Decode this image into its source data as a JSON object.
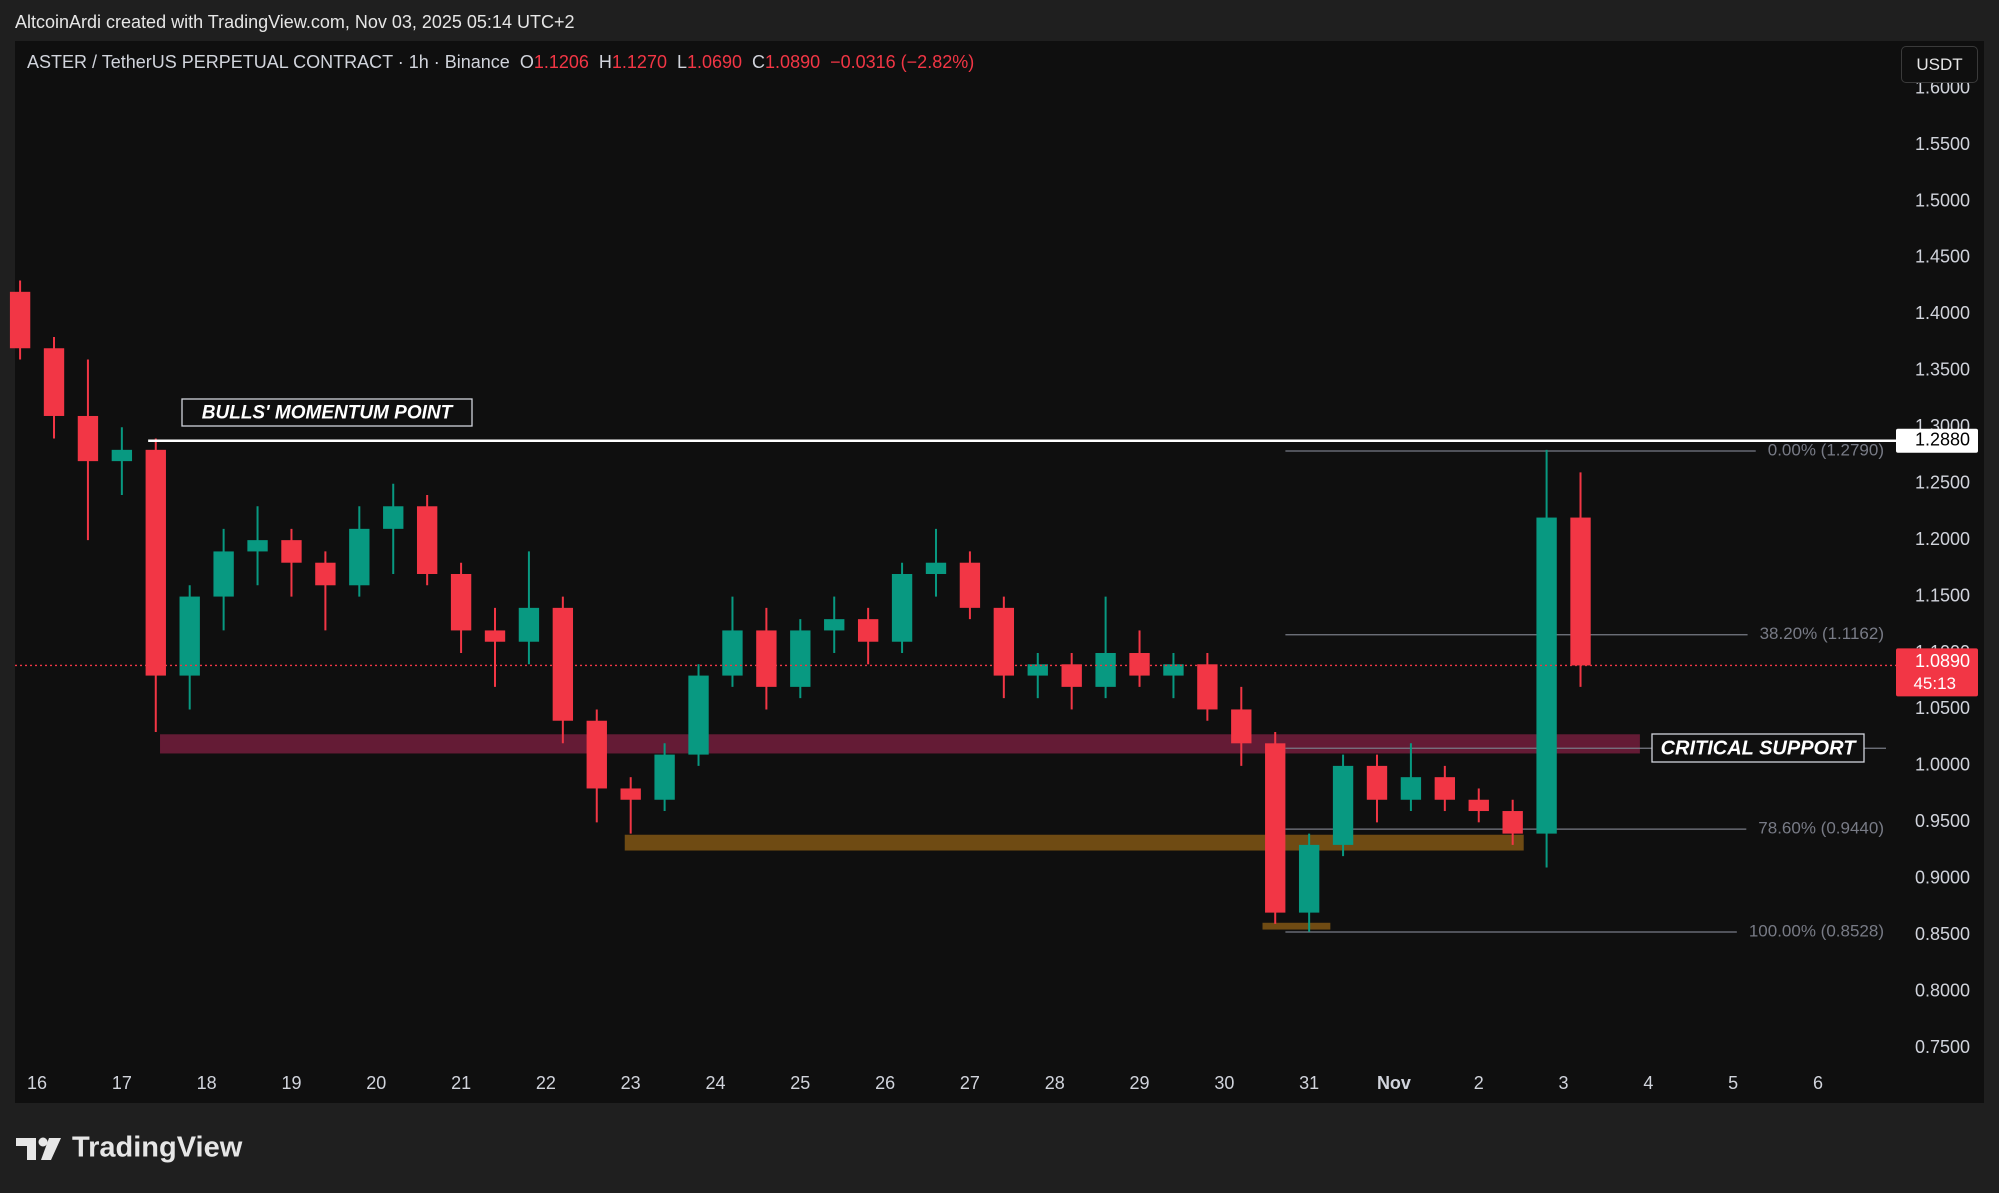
{
  "header": {
    "credit": "AltcoinArdi created with TradingView.com, Nov 03, 2025 05:14 UTC+2",
    "symbol": "ASTER / TetherUS PERPETUAL CONTRACT · 1h · Binance",
    "ohlc": [
      {
        "label": "O",
        "value": "1.1206"
      },
      {
        "label": "H",
        "value": "1.1270"
      },
      {
        "label": "L",
        "value": "1.0690"
      },
      {
        "label": "C",
        "value": "1.0890"
      }
    ],
    "change": "−0.0316 (−2.82%)",
    "currency": "USDT"
  },
  "footer": {
    "brand": "TradingView"
  },
  "chart_data": {
    "type": "candlestick",
    "up_color": "#089981",
    "down_color": "#f23645",
    "xlim": [
      -0.26,
      21.92
    ],
    "xticks": [
      {
        "value": 0,
        "label": "16"
      },
      {
        "value": 1,
        "label": "17"
      },
      {
        "value": 2,
        "label": "18"
      },
      {
        "value": 3,
        "label": "19"
      },
      {
        "value": 4,
        "label": "20"
      },
      {
        "value": 5,
        "label": "21"
      },
      {
        "value": 6,
        "label": "22"
      },
      {
        "value": 7,
        "label": "23"
      },
      {
        "value": 8,
        "label": "24"
      },
      {
        "value": 9,
        "label": "25"
      },
      {
        "value": 10,
        "label": "26"
      },
      {
        "value": 11,
        "label": "27"
      },
      {
        "value": 12,
        "label": "28"
      },
      {
        "value": 13,
        "label": "29"
      },
      {
        "value": 14,
        "label": "30"
      },
      {
        "value": 15,
        "label": "31"
      },
      {
        "value": 16,
        "label": "Nov"
      },
      {
        "value": 17,
        "label": "2"
      },
      {
        "value": 18,
        "label": "3"
      },
      {
        "value": 19,
        "label": "4"
      },
      {
        "value": 20,
        "label": "5"
      },
      {
        "value": 21,
        "label": "6"
      }
    ],
    "ylim": [
      0.735,
      1.605
    ],
    "yticks": [
      {
        "value": 0.75,
        "label": "0.7500"
      },
      {
        "value": 0.8,
        "label": "0.8000"
      },
      {
        "value": 0.85,
        "label": "0.8500"
      },
      {
        "value": 0.9,
        "label": "0.9000"
      },
      {
        "value": 0.95,
        "label": "0.9500"
      },
      {
        "value": 1.0,
        "label": "1.0000"
      },
      {
        "value": 1.05,
        "label": "1.0500"
      },
      {
        "value": 1.1,
        "label": "1.1000"
      },
      {
        "value": 1.15,
        "label": "1.1500"
      },
      {
        "value": 1.2,
        "label": "1.2000"
      },
      {
        "value": 1.25,
        "label": "1.2500"
      },
      {
        "value": 1.3,
        "label": "1.3000"
      },
      {
        "value": 1.35,
        "label": "1.3500"
      },
      {
        "value": 1.4,
        "label": "1.4000"
      },
      {
        "value": 1.45,
        "label": "1.4500"
      },
      {
        "value": 1.5,
        "label": "1.5000"
      },
      {
        "value": 1.55,
        "label": "1.5500"
      },
      {
        "value": 1.6,
        "label": "1.6000"
      }
    ],
    "grid": false,
    "x": [
      -0.2,
      0.2,
      0.6,
      1.0,
      1.4,
      1.8,
      2.2,
      2.6,
      3.0,
      3.4,
      3.8,
      4.2,
      4.6,
      5.0,
      5.4,
      5.8,
      6.2,
      6.6,
      7.0,
      7.4,
      7.8,
      8.2,
      8.6,
      9.0,
      9.4,
      9.8,
      10.2,
      10.6,
      11.0,
      11.4,
      11.8,
      12.2,
      12.6,
      13.0,
      13.4,
      13.8,
      14.2,
      14.6,
      15.0,
      15.4,
      15.8,
      16.2,
      16.6,
      17.0,
      17.4,
      17.8,
      18.2
    ],
    "open": [
      1.42,
      1.37,
      1.31,
      1.27,
      1.28,
      1.08,
      1.15,
      1.19,
      1.2,
      1.18,
      1.16,
      1.21,
      1.23,
      1.17,
      1.12,
      1.11,
      1.14,
      1.04,
      0.98,
      0.97,
      1.01,
      1.08,
      1.12,
      1.07,
      1.12,
      1.13,
      1.11,
      1.17,
      1.18,
      1.14,
      1.08,
      1.09,
      1.07,
      1.1,
      1.08,
      1.09,
      1.05,
      1.02,
      0.87,
      0.93,
      1.0,
      0.97,
      0.99,
      0.97,
      0.96,
      0.94,
      1.22
    ],
    "high": [
      1.43,
      1.38,
      1.36,
      1.3,
      1.29,
      1.16,
      1.21,
      1.23,
      1.21,
      1.19,
      1.23,
      1.25,
      1.24,
      1.18,
      1.14,
      1.19,
      1.15,
      1.05,
      0.99,
      1.02,
      1.09,
      1.15,
      1.14,
      1.13,
      1.15,
      1.14,
      1.18,
      1.21,
      1.19,
      1.15,
      1.1,
      1.1,
      1.15,
      1.12,
      1.1,
      1.1,
      1.07,
      1.03,
      0.94,
      1.01,
      1.01,
      1.02,
      1.0,
      0.98,
      0.97,
      1.28,
      1.26
    ],
    "low": [
      1.36,
      1.29,
      1.2,
      1.24,
      1.03,
      1.05,
      1.12,
      1.16,
      1.15,
      1.12,
      1.15,
      1.17,
      1.16,
      1.1,
      1.07,
      1.09,
      1.02,
      0.95,
      0.94,
      0.96,
      1.0,
      1.07,
      1.05,
      1.06,
      1.1,
      1.09,
      1.1,
      1.15,
      1.13,
      1.06,
      1.06,
      1.05,
      1.06,
      1.07,
      1.06,
      1.04,
      1.0,
      0.86,
      0.853,
      0.92,
      0.95,
      0.96,
      0.96,
      0.95,
      0.93,
      0.91,
      1.07
    ],
    "close": [
      1.37,
      1.31,
      1.27,
      1.28,
      1.08,
      1.15,
      1.19,
      1.2,
      1.18,
      1.16,
      1.21,
      1.23,
      1.17,
      1.12,
      1.11,
      1.14,
      1.04,
      0.98,
      0.97,
      1.01,
      1.08,
      1.12,
      1.07,
      1.12,
      1.13,
      1.11,
      1.17,
      1.18,
      1.14,
      1.08,
      1.09,
      1.07,
      1.1,
      1.08,
      1.09,
      1.05,
      1.02,
      0.87,
      0.93,
      1.0,
      0.97,
      0.99,
      0.97,
      0.96,
      0.94,
      1.22,
      1.089
    ],
    "hline": {
      "value": 1.288,
      "label": "1.2880",
      "x_start": 1.31,
      "color": "#ffffff"
    },
    "last_price": {
      "value": 1.089,
      "label": "1.0890",
      "countdown": "45:13",
      "color": "#f23645"
    },
    "zones": [
      {
        "y": [
          1.011,
          1.028
        ],
        "x": [
          1.45,
          18.9
        ],
        "color": "#6e1d3a"
      },
      {
        "y": [
          0.925,
          0.939
        ],
        "x": [
          6.93,
          17.53
        ],
        "color": "#7a5214"
      },
      {
        "y": [
          0.855,
          0.861
        ],
        "x": [
          14.45,
          15.25
        ],
        "color": "#7a5214"
      }
    ],
    "fib": {
      "x_start": 14.72,
      "color": "#787b86",
      "levels": [
        {
          "value": 1.279,
          "label": "0.00% (1.2790)"
        },
        {
          "value": 1.1162,
          "label": "38.20% (1.1162)"
        },
        1.0156,
        {
          "value": 0.944,
          "label": "78.60% (0.9440)"
        },
        {
          "value": 0.8528,
          "label": "100.00% (0.8528)"
        }
      ]
    },
    "annotations": [
      "BULLS' MOMENTUM POINT",
      "CRITICAL SUPPORT"
    ]
  }
}
